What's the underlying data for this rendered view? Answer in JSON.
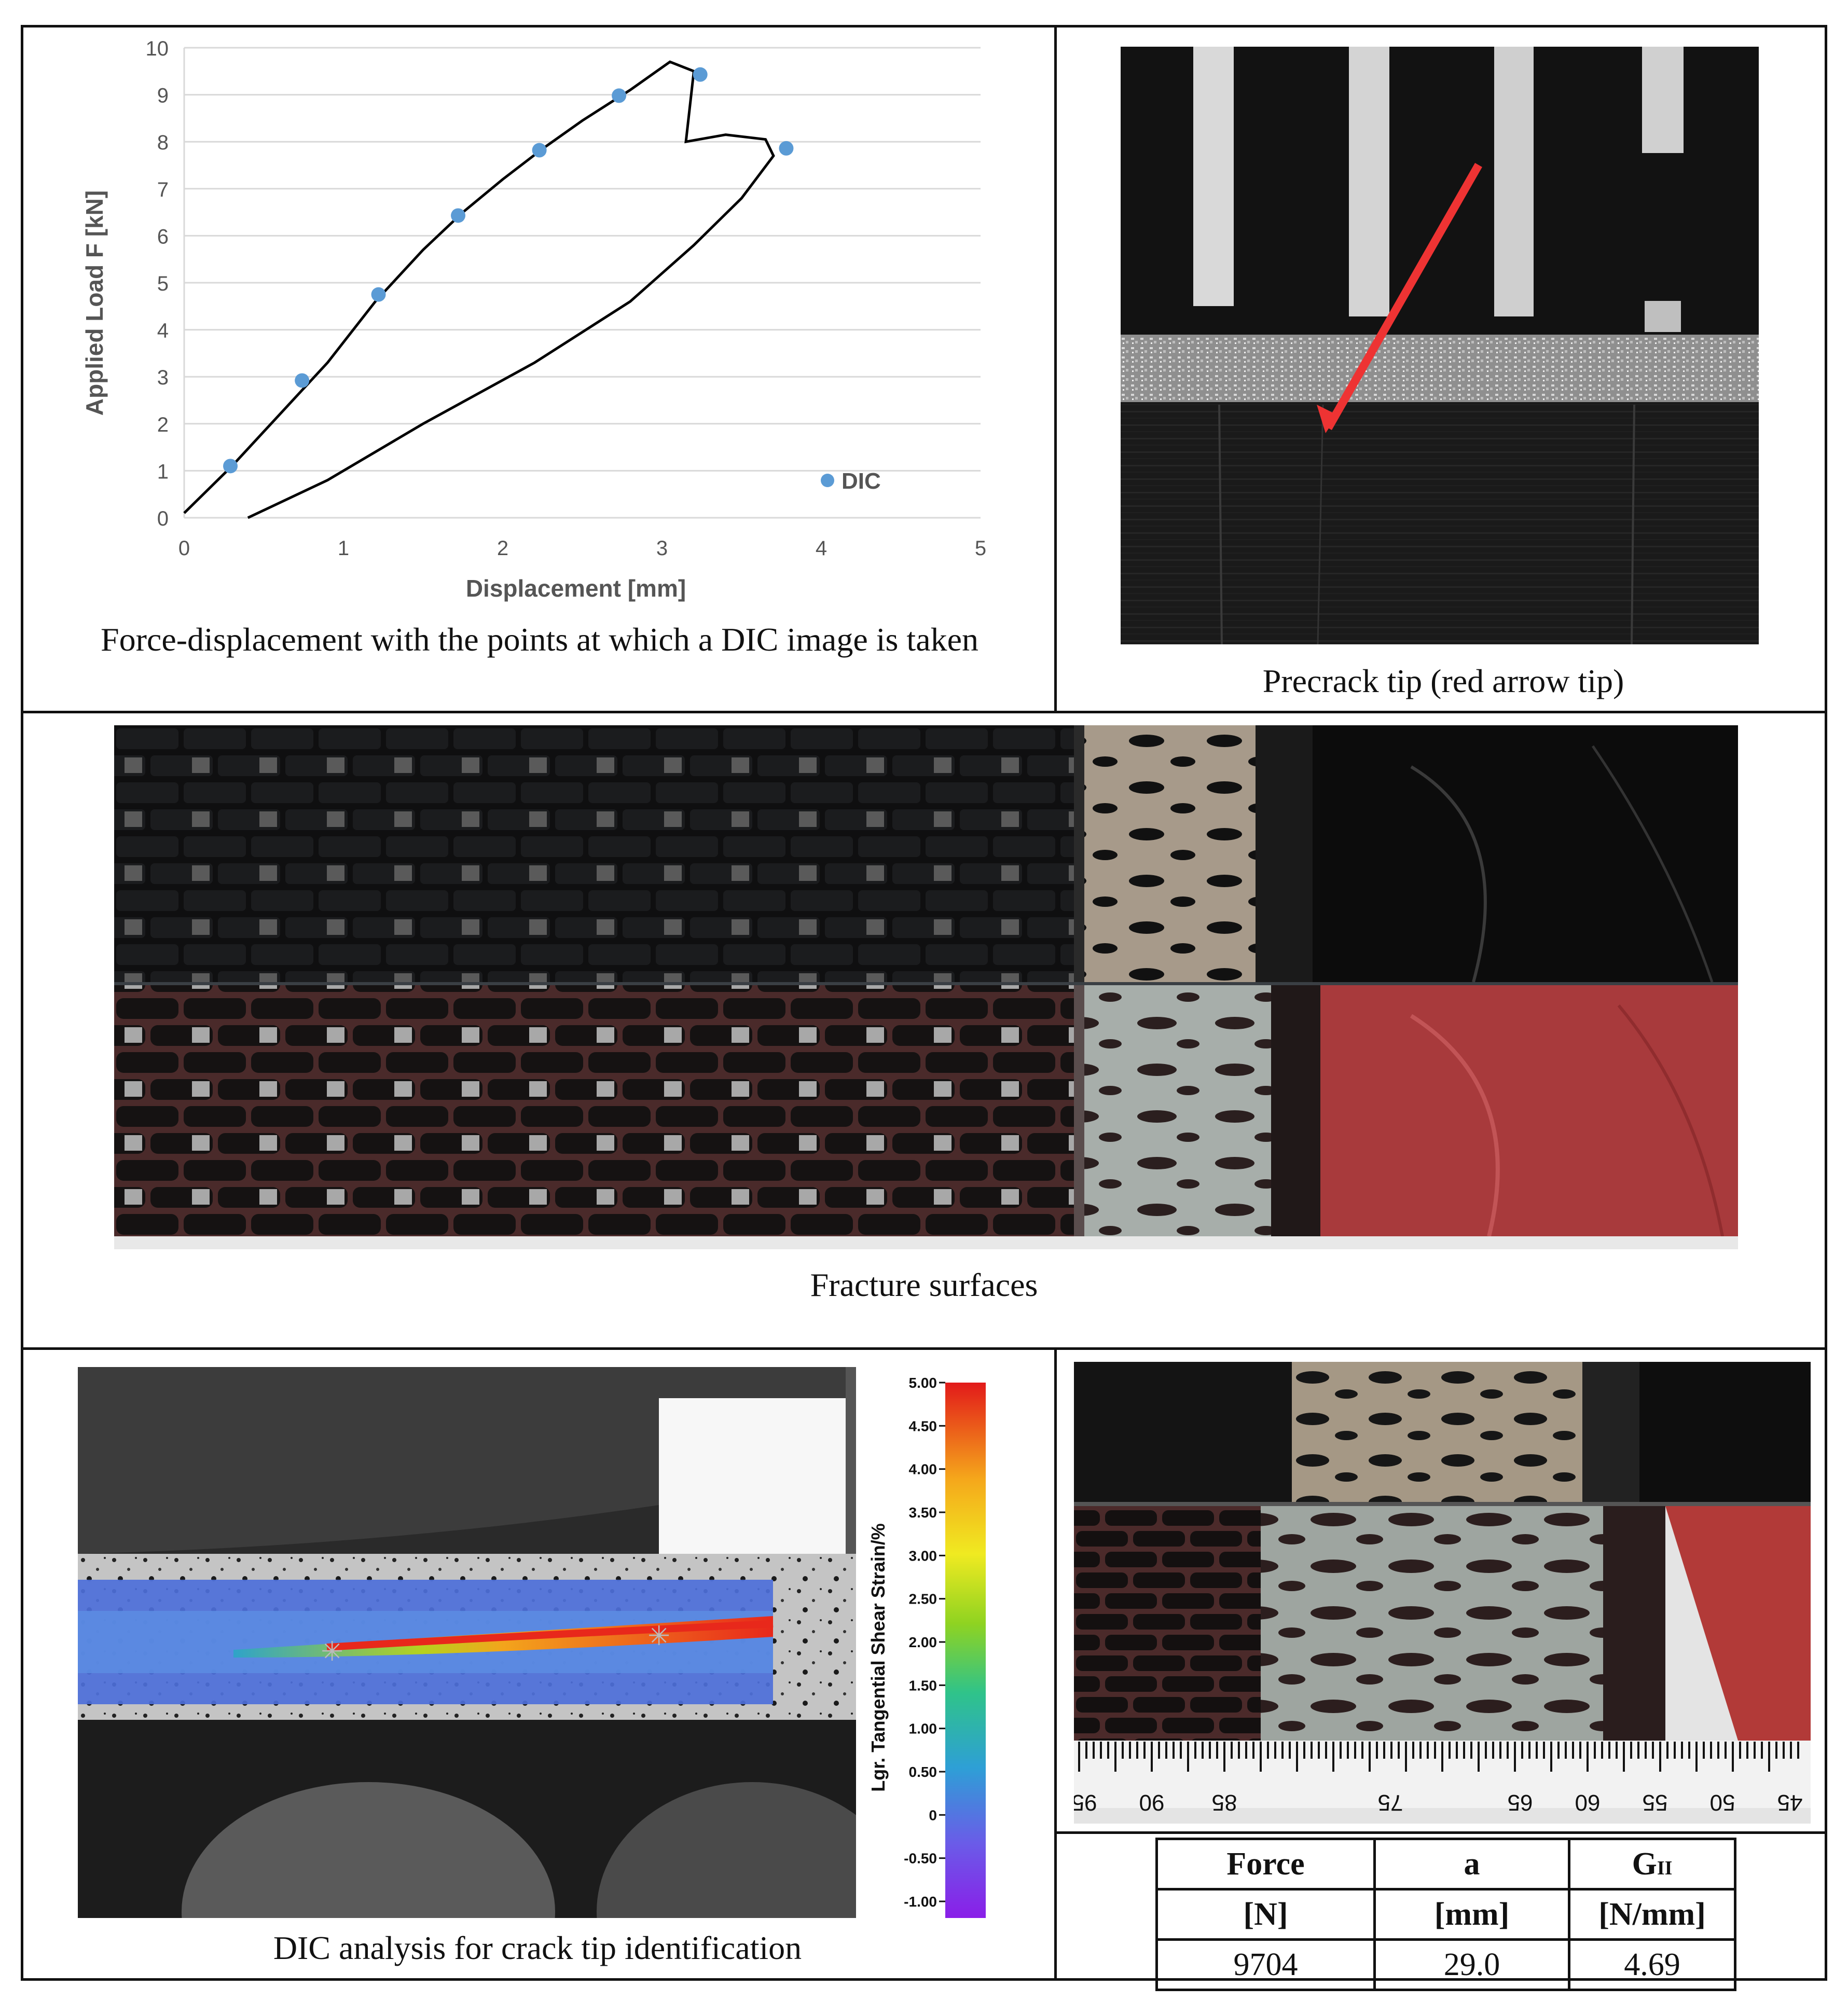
{
  "chart_data": {
    "type": "scatter",
    "xlabel": "Displacement [mm]",
    "ylabel": "Applied Load F [kN]",
    "xlim": [
      0,
      5
    ],
    "ylim": [
      0,
      10
    ],
    "x_ticks": [
      0,
      1,
      2,
      3,
      4,
      5
    ],
    "y_ticks": [
      0,
      1,
      2,
      3,
      4,
      5,
      6,
      7,
      8,
      9,
      10
    ],
    "grid": "horizontal",
    "legend_position": "bottom-right",
    "series": [
      {
        "name": "DIC",
        "type": "scatter",
        "color": "#5b9bd5",
        "points": [
          [
            0.29,
            1.1
          ],
          [
            0.74,
            2.92
          ],
          [
            1.22,
            4.75
          ],
          [
            1.72,
            6.43
          ],
          [
            2.23,
            7.82
          ],
          [
            2.73,
            8.98
          ],
          [
            3.24,
            9.43
          ],
          [
            3.78,
            7.86
          ]
        ]
      },
      {
        "type": "line",
        "color": "#000000",
        "points": [
          [
            0.0,
            0.1
          ],
          [
            0.3,
            1.1
          ],
          [
            0.6,
            2.2
          ],
          [
            0.9,
            3.3
          ],
          [
            1.2,
            4.6
          ],
          [
            1.5,
            5.7
          ],
          [
            1.75,
            6.5
          ],
          [
            2.0,
            7.2
          ],
          [
            2.25,
            7.85
          ],
          [
            2.5,
            8.45
          ],
          [
            2.8,
            9.1
          ],
          [
            3.05,
            9.7
          ],
          [
            3.2,
            9.5
          ],
          [
            3.15,
            8.0
          ],
          [
            3.4,
            8.15
          ],
          [
            3.65,
            8.05
          ],
          [
            3.7,
            7.7
          ],
          [
            3.5,
            6.8
          ],
          [
            3.2,
            5.8
          ],
          [
            2.8,
            4.6
          ],
          [
            2.2,
            3.3
          ],
          [
            1.5,
            2.0
          ],
          [
            0.9,
            0.8
          ],
          [
            0.4,
            0.0
          ]
        ]
      }
    ]
  },
  "captions": {
    "chart": "Force-displacement with the points at which a DIC image is taken",
    "precrack": "Precrack tip (red arrow tip)",
    "fracture": "Fracture surfaces",
    "dic": "DIC analysis for crack tip identification"
  },
  "colorbar": {
    "label": "Lgr. Tangential Shear Strain/%",
    "ticks": [
      "5.00",
      "4.50",
      "4.00",
      "3.50",
      "3.00",
      "2.50",
      "2.00",
      "1.50",
      "1.00",
      "0.50",
      "0",
      "-0.50",
      "-1.00"
    ]
  },
  "ruler": {
    "labels": [
      "95",
      "90",
      "85",
      "75",
      "65",
      "60",
      "55",
      "50",
      "45"
    ]
  },
  "table": {
    "headers": [
      {
        "name": "Force",
        "unit": "[N]"
      },
      {
        "name": "a",
        "unit": "[mm]"
      },
      {
        "name": "G",
        "sub": "II",
        "unit": "[N/mm]"
      }
    ],
    "values": [
      "9704",
      "29.0",
      "4.69"
    ]
  }
}
